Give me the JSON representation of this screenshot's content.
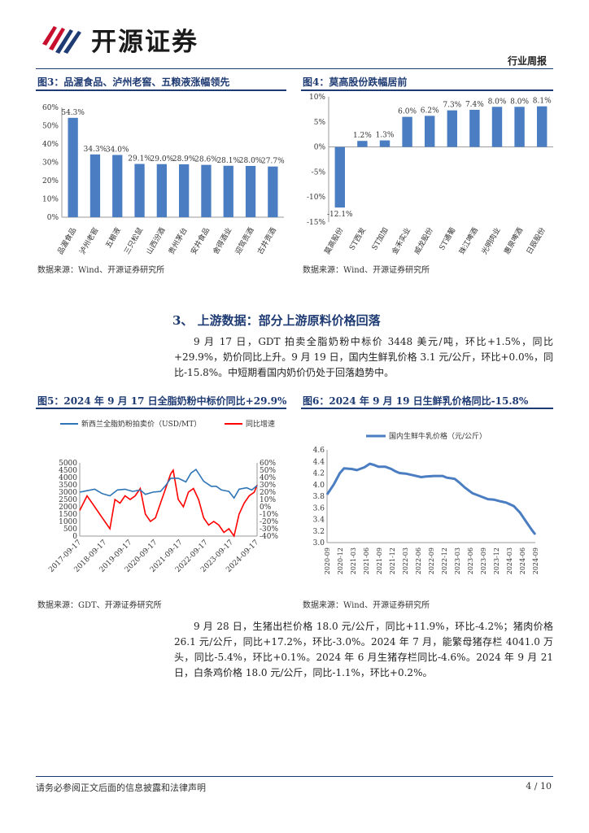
{
  "header": {
    "brand_name": "开源证券",
    "report_type": "行业周报",
    "brand_colors": {
      "red": "#c8102e",
      "navy": "#1f3b73"
    }
  },
  "fig3": {
    "title": "图3：品渥食品、泸州老窖、五粮液涨幅领先",
    "source": "数据来源：Wind、开源证券研究所",
    "chart_data": {
      "type": "bar",
      "categories": [
        "品渥食品",
        "泸州老窖",
        "五粮液",
        "三只松鼠",
        "山西汾酒",
        "贵州茅台",
        "安井食品",
        "舍得酒业",
        "迎驾贡酒",
        "古井贡酒"
      ],
      "values": [
        54.3,
        34.3,
        34.0,
        29.1,
        29.0,
        28.9,
        28.6,
        28.1,
        28.0,
        27.7
      ],
      "labels": [
        "54.3%",
        "34.3%",
        "34.0%",
        "29.1%",
        "29.0%",
        "28.9%",
        "28.6%",
        "28.1%",
        "28.0%",
        "27.7%"
      ],
      "ylim": [
        0,
        60
      ],
      "yticks": [
        0,
        10,
        20,
        30,
        40,
        50,
        60
      ],
      "ytick_labels": [
        "0%",
        "10%",
        "20%",
        "30%",
        "40%",
        "50%",
        "60%"
      ],
      "color": "#4a7dc1"
    }
  },
  "fig4": {
    "title": "图4：莫高股份跌幅居前",
    "source": "数据来源：Wind、开源证券研究所",
    "chart_data": {
      "type": "bar",
      "categories": [
        "莫高股份",
        "ST西发",
        "ST加加",
        "金禾实业",
        "威龙股份",
        "ST通葡",
        "珠江啤酒",
        "光明肉业",
        "惠泉啤酒",
        "日辰股份"
      ],
      "values": [
        -12.1,
        1.2,
        1.3,
        6.0,
        6.2,
        7.3,
        7.4,
        8.0,
        8.0,
        8.1
      ],
      "labels": [
        "-12.1%",
        "1.2%",
        "1.3%",
        "6.0%",
        "6.2%",
        "7.3%",
        "7.4%",
        "8.0%",
        "8.0%",
        "8.1%"
      ],
      "ylim": [
        -15,
        10
      ],
      "yticks": [
        -15,
        -10,
        -5,
        0,
        5,
        10
      ],
      "ytick_labels": [
        "-15%",
        "-10%",
        "-5%",
        "0%",
        "5%",
        "10%"
      ],
      "color": "#4a7dc1"
    }
  },
  "section": {
    "title": "3、 上游数据：部分上游原料价格回落",
    "paragraph1": "9 月 17 日，GDT 拍卖全脂奶粉中标价 3448 美元/吨，环比+1.5%，同比+29.9%，奶价同比上升。9 月 19 日，国内生鲜乳价格 3.1 元/公斤，环比+0.0%，同比-15.8%。中短期看国内奶价仍处于回落趋势中。",
    "paragraph2": "9 月 28 日，生猪出栏价格 18.0 元/公斤，同比+11.9%，环比-4.2%；猪肉价格 26.1 元/公斤，同比+17.2%，环比-3.0%。2024 年 7 月，能繁母猪存栏 4041.0 万头，同比-5.4%，环比+0.1%。2024 年 6 月生猪存栏同比-4.6%。2024 年 9 月 21 日，白条鸡价格 18.0 元/公斤，同比-1.1%，环比+0.2%。"
  },
  "fig5": {
    "title": "图5：2024 年 9 月 17 日全脂奶粉中标价同比+29.9%",
    "source": "数据来源：GDT、开源证券研究所",
    "chart_data": {
      "type": "line",
      "series": [
        {
          "name": "新西兰全脂奶粉拍卖价（USD/MT）",
          "axis": "left",
          "color": "#2e75b6",
          "x": [
            2017.71,
            2018.0,
            2018.3,
            2018.6,
            2018.9,
            2019.2,
            2019.5,
            2019.8,
            2020.1,
            2020.3,
            2020.6,
            2020.9,
            2021.1,
            2021.3,
            2021.6,
            2021.9,
            2022.1,
            2022.3,
            2022.6,
            2022.9,
            2023.1,
            2023.3,
            2023.6,
            2023.8,
            2024.0,
            2024.3,
            2024.5,
            2024.71
          ],
          "values": [
            3000,
            3100,
            3200,
            2900,
            2750,
            3150,
            3200,
            3050,
            3150,
            2850,
            3000,
            3050,
            3450,
            3950,
            3950,
            3700,
            4300,
            4550,
            3750,
            3400,
            3400,
            3150,
            3050,
            2600,
            3200,
            3300,
            3150,
            3448
          ]
        },
        {
          "name": "同比增速",
          "axis": "right",
          "color": "#ff0000",
          "x": [
            2017.71,
            2018.0,
            2018.2,
            2018.5,
            2018.7,
            2018.9,
            2019.1,
            2019.3,
            2019.5,
            2019.7,
            2019.9,
            2020.1,
            2020.3,
            2020.5,
            2020.7,
            2020.9,
            2021.1,
            2021.3,
            2021.4,
            2021.6,
            2021.8,
            2022.0,
            2022.2,
            2022.4,
            2022.6,
            2022.8,
            2023.0,
            2023.2,
            2023.4,
            2023.6,
            2023.8,
            2024.0,
            2024.2,
            2024.4,
            2024.6,
            2024.71
          ],
          "values": [
            -5,
            15,
            5,
            -10,
            -20,
            -30,
            10,
            5,
            15,
            10,
            15,
            25,
            -10,
            -20,
            -15,
            5,
            25,
            45,
            50,
            10,
            0,
            20,
            25,
            10,
            -15,
            -25,
            -20,
            -25,
            -35,
            -30,
            -40,
            -10,
            5,
            15,
            20,
            29.9
          ]
        }
      ],
      "x_tick_labels": [
        "2017-09-17",
        "2018-09-17",
        "2019-09-17",
        "2020-09-17",
        "2021-09-17",
        "2022-09-17",
        "2023-09-17",
        "2024-09-17"
      ],
      "x_tick_values": [
        2017.71,
        2018.71,
        2019.71,
        2020.71,
        2021.71,
        2022.71,
        2023.71,
        2024.71
      ],
      "left_ylim": [
        0,
        5000
      ],
      "left_ticks": [
        "0",
        "500",
        "1000",
        "1500",
        "2000",
        "2500",
        "3000",
        "3500",
        "4000",
        "4500",
        "5000"
      ],
      "right_ylim": [
        -40,
        60
      ],
      "right_ticks": [
        "-40%",
        "-30%",
        "-20%",
        "-10%",
        "0%",
        "10%",
        "20%",
        "30%",
        "40%",
        "50%",
        "60%"
      ],
      "legend_position": "top"
    }
  },
  "fig6": {
    "title": "图6：2024 年 9 月 19 日生鲜乳价格同比-15.8%",
    "source": "数据来源：Wind、开源证券研究所",
    "chart_data": {
      "type": "line",
      "series": [
        {
          "name": "国内生鲜牛乳价格（元/公斤）",
          "color": "#4a7dc1",
          "x": [
            2020.67,
            2020.8,
            2020.92,
            2021.0,
            2021.15,
            2021.25,
            2021.4,
            2021.5,
            2021.58,
            2021.67,
            2021.8,
            2021.92,
            2022.0,
            2022.08,
            2022.2,
            2022.35,
            2022.5,
            2022.6,
            2022.75,
            2022.92,
            2023.0,
            2023.15,
            2023.25,
            2023.35,
            2023.5,
            2023.65,
            2023.8,
            2023.92,
            2024.05,
            2024.15,
            2024.3,
            2024.42,
            2024.55,
            2024.65,
            2024.72
          ],
          "values": [
            3.83,
            4.0,
            4.2,
            4.28,
            4.27,
            4.25,
            4.3,
            4.36,
            4.34,
            4.31,
            4.31,
            4.27,
            4.23,
            4.2,
            4.19,
            4.16,
            4.13,
            4.14,
            4.15,
            4.15,
            4.12,
            4.1,
            4.03,
            3.95,
            3.85,
            3.8,
            3.75,
            3.74,
            3.71,
            3.69,
            3.63,
            3.52,
            3.35,
            3.22,
            3.14
          ]
        }
      ],
      "x_tick_labels": [
        "2020-09",
        "2020-12",
        "2021-03",
        "2021-06",
        "2021-09",
        "2021-12",
        "2022-03",
        "2022-06",
        "2022-09",
        "2022-12",
        "2023-03",
        "2023-06",
        "2023-09",
        "2023-12",
        "2024-03",
        "2024-06",
        "2024-09"
      ],
      "ylim": [
        3.0,
        4.6
      ],
      "y_ticks": [
        "3.0",
        "3.2",
        "3.4",
        "3.6",
        "3.8",
        "4.0",
        "4.2",
        "4.4",
        "4.6"
      ],
      "legend_position": "top"
    }
  },
  "footer": {
    "disclaimer": "请务必参阅正文后面的信息披露和法律声明",
    "page": "4 / 10"
  }
}
